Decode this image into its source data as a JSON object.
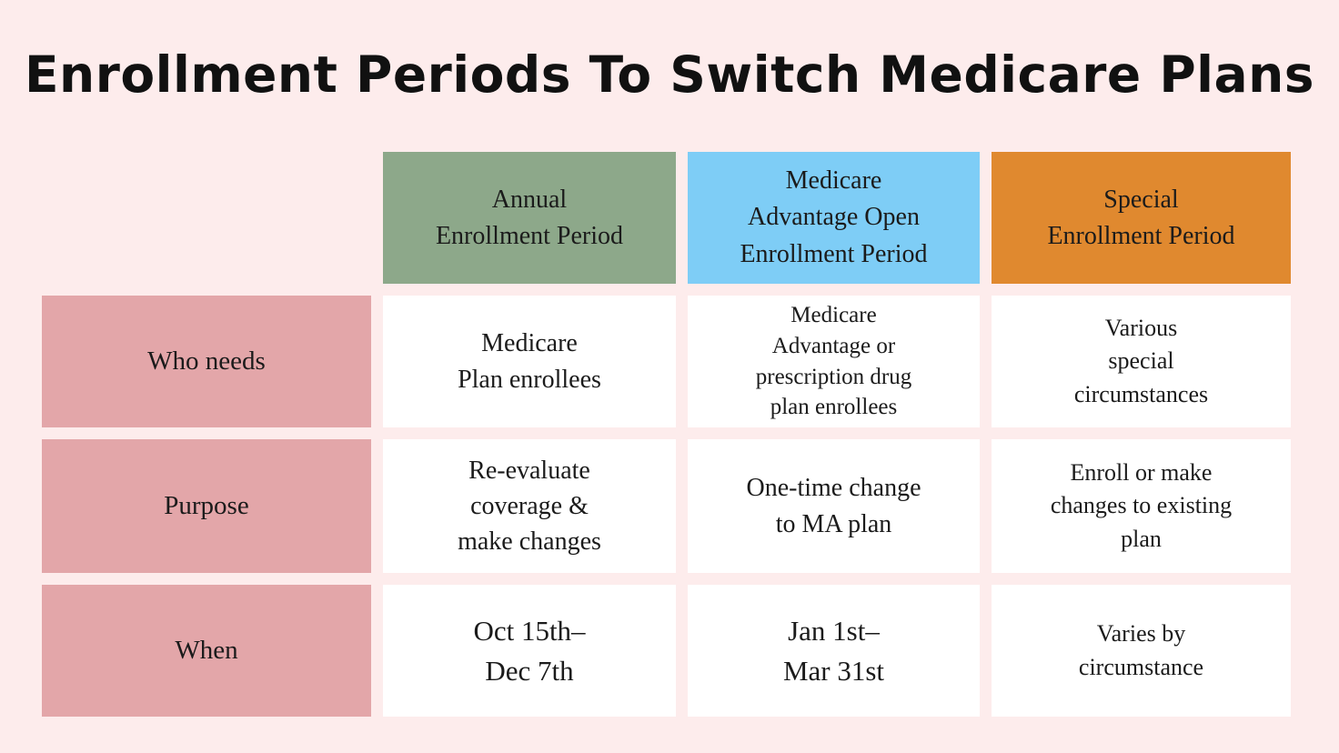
{
  "title": "Enrollment Periods To Switch Medicare Plans",
  "colors": {
    "background": "#fdecec",
    "row_header": "#e3a6a9",
    "col_annual": "#8da88a",
    "col_ma_open": "#7ecdf6",
    "col_special": "#e0892f",
    "cell": "#ffffff",
    "text": "#1b1b1b"
  },
  "table": {
    "columns": [
      {
        "id": "annual",
        "label": "Annual\nEnrollment Period"
      },
      {
        "id": "ma-open",
        "label": "Medicare\nAdvantage Open\nEnrollment Period"
      },
      {
        "id": "special",
        "label": "Special\nEnrollment Period"
      }
    ],
    "rows": [
      {
        "id": "who-needs",
        "label": "Who needs",
        "cells": [
          "Medicare\nPlan  enrollees",
          "Medicare\nAdvantage or\nprescription drug\nplan enrollees",
          "Various\nspecial\ncircumstances"
        ]
      },
      {
        "id": "purpose",
        "label": "Purpose",
        "cells": [
          "Re-evaluate\ncoverage &\nmake changes",
          "One-time change\nto MA plan",
          "Enroll or make\nchanges to existing\nplan"
        ]
      },
      {
        "id": "when",
        "label": "When",
        "cells": [
          "Oct 15th–\nDec 7th",
          "Jan 1st–\nMar 31st",
          "Varies by\ncircumstance"
        ]
      }
    ]
  },
  "chart_data": {
    "type": "table",
    "title": "Enrollment Periods To Switch Medicare Plans",
    "columns": [
      "",
      "Annual Enrollment Period",
      "Medicare Advantage Open Enrollment Period",
      "Special Enrollment Period"
    ],
    "rows": [
      [
        "Who needs",
        "Medicare Plan enrollees",
        "Medicare Advantage or prescription drug plan enrollees",
        "Various special circumstances"
      ],
      [
        "Purpose",
        "Re-evaluate coverage & make changes",
        "One-time change to MA plan",
        "Enroll or make changes to existing plan"
      ],
      [
        "When",
        "Oct 15th– Dec 7th",
        "Jan 1st– Mar 31st",
        "Varies by circumstance"
      ]
    ]
  }
}
